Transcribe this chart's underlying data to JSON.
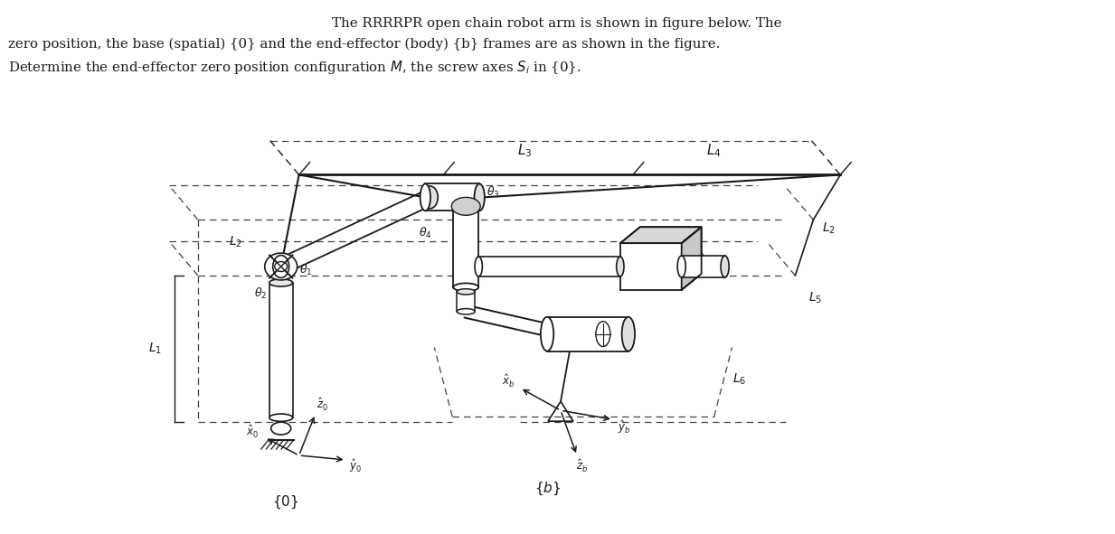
{
  "title_line1": "The RRRRPR open chain robot arm is shown in figure below. The",
  "title_line2": "zero position, the base (spatial) {0} and the end-effector (body) {b} frames are as shown in the figure.",
  "title_line3": "Determine the end-effector zero position configuration M, the screw axes Sᵢ in {0}.",
  "bg_color": "#ffffff",
  "line_color": "#1a1a1a",
  "dashed_color": "#444444",
  "text_color": "#1a1a1a",
  "fig_width": 12.33,
  "fig_height": 5.91
}
